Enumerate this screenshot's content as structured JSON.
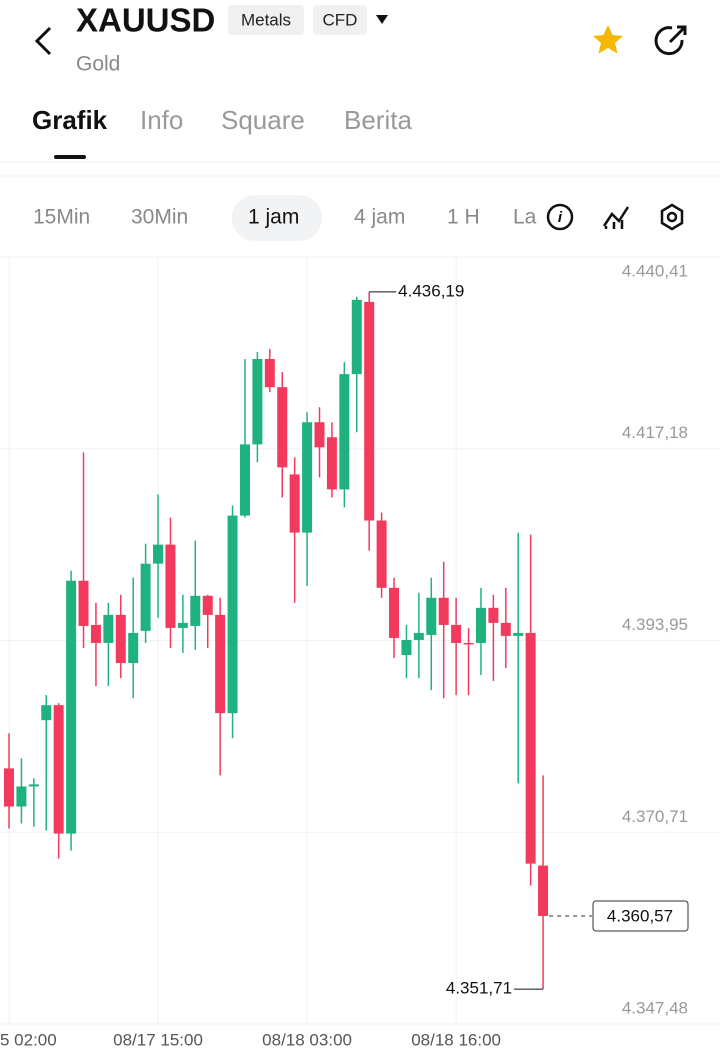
{
  "header": {
    "symbol": "XAUUSD",
    "tags": [
      "Metals",
      "CFD"
    ],
    "subtitle": "Gold"
  },
  "tabs": [
    "Grafik",
    "Info",
    "Square",
    "Berita"
  ],
  "intervals": [
    "15Min",
    "30Min",
    "1 jam",
    "4 jam",
    "1 H",
    "La"
  ],
  "chart_data": {
    "type": "candlestick",
    "categories": [
      "5 02:00",
      null,
      null,
      null,
      null,
      null,
      null,
      null,
      null,
      null,
      null,
      null,
      "08/17 15:00",
      null,
      null,
      null,
      null,
      null,
      null,
      null,
      null,
      null,
      null,
      null,
      "08/18 03:00",
      null,
      null,
      null,
      null,
      null,
      null,
      null,
      null,
      null,
      null,
      null,
      "08/18 16:00",
      null,
      null,
      null,
      null,
      null,
      null,
      null
    ],
    "open": [
      4378.45,
      4373.83,
      4376.26,
      4384.29,
      4386.11,
      4370.55,
      4401.18,
      4395.83,
      4393.65,
      4397.05,
      4391.22,
      4395.11,
      4403.25,
      4405.56,
      4395.47,
      4395.71,
      4399.36,
      4397.05,
      4385.14,
      4409.08,
      4417.71,
      4428.05,
      4424.64,
      4414.07,
      4407.02,
      4420.39,
      4418.57,
      4412.25,
      4426.22,
      4434.97,
      4408.48,
      4400.33,
      4392.19,
      4394.01,
      4394.62,
      4399.12,
      4395.83,
      4393.65,
      4393.65,
      4397.9,
      4396.08,
      4394.5,
      4394.86,
      4366.67
    ],
    "high": [
      4382.71,
      4379.67,
      4377.24,
      4387.33,
      4386.35,
      4402.4,
      4416.74,
      4398.51,
      4398.51,
      4399.48,
      4401.55,
      4405.68,
      4411.64,
      4408.84,
      4399.48,
      4406.05,
      4399.48,
      4399.12,
      4410.3,
      4428.05,
      4428.9,
      4429.26,
      4426.47,
      4416.13,
      4421.6,
      4422.21,
      4420.39,
      4427.68,
      4435.58,
      4436.19,
      4409.45,
      4401.55,
      4395.83,
      4399.72,
      4401.55,
      4403.49,
      4399.12,
      4395.47,
      4400.33,
      4399.48,
      4400.33,
      4407.02,
      4406.77,
      4377.6
    ],
    "low": [
      4371.16,
      4371.77,
      4371.4,
      4370.92,
      4367.52,
      4368.49,
      4393.04,
      4388.42,
      4388.42,
      4389.39,
      4386.96,
      4393.65,
      4396.69,
      4393.04,
      4392.43,
      4392.8,
      4393.04,
      4377.6,
      4382.1,
      4408.84,
      4415.53,
      4424.03,
      4411.27,
      4398.51,
      4400.58,
      4413.7,
      4411.27,
      4410.06,
      4419.17,
      4404.83,
      4399.12,
      4391.82,
      4389.39,
      4389.39,
      4387.93,
      4386.96,
      4387.33,
      4387.33,
      4389.76,
      4389.03,
      4390.61,
      4376.63,
      4364.24,
      4351.71
    ],
    "close": [
      4373.83,
      4376.26,
      4376.51,
      4386.11,
      4370.55,
      4401.18,
      4395.71,
      4393.65,
      4397.05,
      4391.22,
      4394.86,
      4403.25,
      4405.56,
      4395.47,
      4396.08,
      4399.36,
      4397.05,
      4385.14,
      4409.08,
      4417.71,
      4428.05,
      4424.64,
      4414.92,
      4407.02,
      4420.39,
      4417.35,
      4412.25,
      4426.22,
      4435.22,
      4408.48,
      4400.33,
      4394.25,
      4394.01,
      4394.86,
      4399.12,
      4395.83,
      4393.65,
      4393.53,
      4397.9,
      4396.08,
      4394.5,
      4394.86,
      4366.91,
      4360.57
    ],
    "up_color": "#20b27e",
    "down_color": "#f23a5e",
    "ylim": [
      4347.48,
      4440.41
    ],
    "yticks": [
      {
        "value": 4440.41,
        "label": "4.440,41"
      },
      {
        "value": 4417.18,
        "label": "4.417,18"
      },
      {
        "value": 4393.95,
        "label": "4.393,95"
      },
      {
        "value": 4370.71,
        "label": "4.370,71"
      },
      {
        "value": 4347.48,
        "label": "4.347,48"
      }
    ],
    "grid": true,
    "max_marker": {
      "value": 4436.19,
      "label": "4.436,19"
    },
    "min_marker": {
      "value": 4351.71,
      "label": "4.351,71"
    },
    "last_price": {
      "value": 4360.57,
      "label": "4.360,57"
    }
  }
}
